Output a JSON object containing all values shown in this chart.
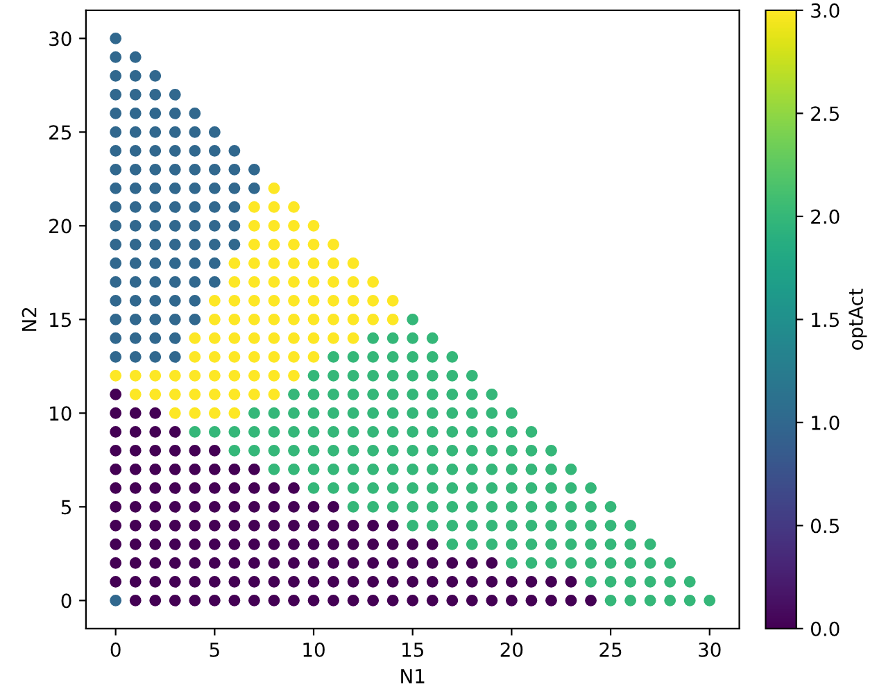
{
  "chart_data": {
    "type": "scatter",
    "xlabel": "N1",
    "ylabel": "N2",
    "clabel": "optAct",
    "marker": "circle",
    "grid": false,
    "xlim": [
      -1.5,
      31.5
    ],
    "ylim": [
      -1.5,
      31.5
    ],
    "xticks": [
      0,
      5,
      10,
      15,
      20,
      25,
      30
    ],
    "yticks": [
      0,
      5,
      10,
      15,
      20,
      25,
      30
    ],
    "clim": [
      0,
      3
    ],
    "cticks": [
      {
        "value": 0,
        "label": "0.0"
      },
      0.5,
      {
        "value": 1,
        "label": "1.0"
      },
      1.5,
      {
        "value": 2,
        "label": "2.0"
      },
      2.5,
      {
        "value": 3,
        "label": "3.0"
      }
    ],
    "series": [
      {
        "x": [
          0,
          1,
          2,
          3,
          4,
          5,
          6,
          7,
          8,
          9,
          10,
          11,
          12,
          13,
          14,
          15,
          16,
          17,
          18,
          19,
          20,
          21,
          22,
          23,
          24,
          25,
          26,
          27,
          28,
          29,
          30
        ],
        "values": [
          0,
          0,
          0,
          0,
          0,
          0,
          0,
          0,
          0,
          0,
          0,
          0,
          0,
          0,
          0,
          0,
          0,
          0,
          0,
          0,
          0,
          0,
          0,
          0,
          0,
          0,
          0,
          0,
          0,
          0,
          0
        ],
        "cvalues": [
          1,
          0,
          0,
          0,
          0,
          0,
          0,
          0,
          0,
          0,
          0,
          0,
          0,
          0,
          0,
          0,
          0,
          0,
          0,
          0,
          0,
          0,
          0,
          0,
          0,
          2,
          2,
          2,
          2,
          2,
          2
        ],
        "colors": [
          "#31688e",
          "#440154",
          "#440154",
          "#440154",
          "#440154",
          "#440154",
          "#440154",
          "#440154",
          "#440154",
          "#440154",
          "#440154",
          "#440154",
          "#440154",
          "#440154",
          "#440154",
          "#440154",
          "#440154",
          "#440154",
          "#440154",
          "#440154",
          "#440154",
          "#440154",
          "#440154",
          "#440154",
          "#440154",
          "#35b779",
          "#35b779",
          "#35b779",
          "#35b779",
          "#35b779",
          "#35b779"
        ]
      },
      {
        "x": [
          0,
          1,
          2,
          3,
          4,
          5,
          6,
          7,
          8,
          9,
          10,
          11,
          12,
          13,
          14,
          15,
          16,
          17,
          18,
          19,
          20,
          21,
          22,
          23,
          24,
          25,
          26,
          27,
          28,
          29
        ],
        "values": [
          1,
          1,
          1,
          1,
          1,
          1,
          1,
          1,
          1,
          1,
          1,
          1,
          1,
          1,
          1,
          1,
          1,
          1,
          1,
          1,
          1,
          1,
          1,
          1,
          1,
          1,
          1,
          1,
          1,
          1
        ],
        "cvalues": [
          0,
          0,
          0,
          0,
          0,
          0,
          0,
          0,
          0,
          0,
          0,
          0,
          0,
          0,
          0,
          0,
          0,
          0,
          0,
          0,
          0,
          0,
          0,
          0,
          2,
          2,
          2,
          2,
          2,
          2
        ],
        "colors": [
          "#440154",
          "#440154",
          "#440154",
          "#440154",
          "#440154",
          "#440154",
          "#440154",
          "#440154",
          "#440154",
          "#440154",
          "#440154",
          "#440154",
          "#440154",
          "#440154",
          "#440154",
          "#440154",
          "#440154",
          "#440154",
          "#440154",
          "#440154",
          "#440154",
          "#440154",
          "#440154",
          "#440154",
          "#35b779",
          "#35b779",
          "#35b779",
          "#35b779",
          "#35b779",
          "#35b779"
        ]
      },
      {
        "x": [
          0,
          1,
          2,
          3,
          4,
          5,
          6,
          7,
          8,
          9,
          10,
          11,
          12,
          13,
          14,
          15,
          16,
          17,
          18,
          19,
          20,
          21,
          22,
          23,
          24,
          25,
          26,
          27,
          28
        ],
        "values": [
          2,
          2,
          2,
          2,
          2,
          2,
          2,
          2,
          2,
          2,
          2,
          2,
          2,
          2,
          2,
          2,
          2,
          2,
          2,
          2,
          2,
          2,
          2,
          2,
          2,
          2,
          2,
          2,
          2
        ],
        "cvalues": [
          0,
          0,
          0,
          0,
          0,
          0,
          0,
          0,
          0,
          0,
          0,
          0,
          0,
          0,
          0,
          0,
          0,
          0,
          0,
          0,
          2,
          2,
          2,
          2,
          2,
          2,
          2,
          2,
          2
        ],
        "colors": [
          "#440154",
          "#440154",
          "#440154",
          "#440154",
          "#440154",
          "#440154",
          "#440154",
          "#440154",
          "#440154",
          "#440154",
          "#440154",
          "#440154",
          "#440154",
          "#440154",
          "#440154",
          "#440154",
          "#440154",
          "#440154",
          "#440154",
          "#440154",
          "#35b779",
          "#35b779",
          "#35b779",
          "#35b779",
          "#35b779",
          "#35b779",
          "#35b779",
          "#35b779",
          "#35b779"
        ]
      },
      {
        "x": [
          0,
          1,
          2,
          3,
          4,
          5,
          6,
          7,
          8,
          9,
          10,
          11,
          12,
          13,
          14,
          15,
          16,
          17,
          18,
          19,
          20,
          21,
          22,
          23,
          24,
          25,
          26,
          27
        ],
        "values": [
          3,
          3,
          3,
          3,
          3,
          3,
          3,
          3,
          3,
          3,
          3,
          3,
          3,
          3,
          3,
          3,
          3,
          3,
          3,
          3,
          3,
          3,
          3,
          3,
          3,
          3,
          3,
          3
        ],
        "cvalues": [
          0,
          0,
          0,
          0,
          0,
          0,
          0,
          0,
          0,
          0,
          0,
          0,
          0,
          0,
          0,
          0,
          0,
          2,
          2,
          2,
          2,
          2,
          2,
          2,
          2,
          2,
          2,
          2
        ],
        "colors": [
          "#440154",
          "#440154",
          "#440154",
          "#440154",
          "#440154",
          "#440154",
          "#440154",
          "#440154",
          "#440154",
          "#440154",
          "#440154",
          "#440154",
          "#440154",
          "#440154",
          "#440154",
          "#440154",
          "#440154",
          "#35b779",
          "#35b779",
          "#35b779",
          "#35b779",
          "#35b779",
          "#35b779",
          "#35b779",
          "#35b779",
          "#35b779",
          "#35b779",
          "#35b779"
        ]
      },
      {
        "x": [
          0,
          1,
          2,
          3,
          4,
          5,
          6,
          7,
          8,
          9,
          10,
          11,
          12,
          13,
          14,
          15,
          16,
          17,
          18,
          19,
          20,
          21,
          22,
          23,
          24,
          25,
          26
        ],
        "values": [
          4,
          4,
          4,
          4,
          4,
          4,
          4,
          4,
          4,
          4,
          4,
          4,
          4,
          4,
          4,
          4,
          4,
          4,
          4,
          4,
          4,
          4,
          4,
          4,
          4,
          4,
          4
        ],
        "cvalues": [
          0,
          0,
          0,
          0,
          0,
          0,
          0,
          0,
          0,
          0,
          0,
          0,
          0,
          0,
          0,
          2,
          2,
          2,
          2,
          2,
          2,
          2,
          2,
          2,
          2,
          2,
          2
        ],
        "colors": [
          "#440154",
          "#440154",
          "#440154",
          "#440154",
          "#440154",
          "#440154",
          "#440154",
          "#440154",
          "#440154",
          "#440154",
          "#440154",
          "#440154",
          "#440154",
          "#440154",
          "#440154",
          "#35b779",
          "#35b779",
          "#35b779",
          "#35b779",
          "#35b779",
          "#35b779",
          "#35b779",
          "#35b779",
          "#35b779",
          "#35b779",
          "#35b779",
          "#35b779"
        ]
      },
      {
        "x": [
          0,
          1,
          2,
          3,
          4,
          5,
          6,
          7,
          8,
          9,
          10,
          11,
          12,
          13,
          14,
          15,
          16,
          17,
          18,
          19,
          20,
          21,
          22,
          23,
          24,
          25
        ],
        "values": [
          5,
          5,
          5,
          5,
          5,
          5,
          5,
          5,
          5,
          5,
          5,
          5,
          5,
          5,
          5,
          5,
          5,
          5,
          5,
          5,
          5,
          5,
          5,
          5,
          5,
          5
        ],
        "cvalues": [
          0,
          0,
          0,
          0,
          0,
          0,
          0,
          0,
          0,
          0,
          0,
          0,
          2,
          2,
          2,
          2,
          2,
          2,
          2,
          2,
          2,
          2,
          2,
          2,
          2,
          2
        ],
        "colors": [
          "#440154",
          "#440154",
          "#440154",
          "#440154",
          "#440154",
          "#440154",
          "#440154",
          "#440154",
          "#440154",
          "#440154",
          "#440154",
          "#440154",
          "#35b779",
          "#35b779",
          "#35b779",
          "#35b779",
          "#35b779",
          "#35b779",
          "#35b779",
          "#35b779",
          "#35b779",
          "#35b779",
          "#35b779",
          "#35b779",
          "#35b779",
          "#35b779"
        ]
      },
      {
        "x": [
          0,
          1,
          2,
          3,
          4,
          5,
          6,
          7,
          8,
          9,
          10,
          11,
          12,
          13,
          14,
          15,
          16,
          17,
          18,
          19,
          20,
          21,
          22,
          23,
          24
        ],
        "values": [
          6,
          6,
          6,
          6,
          6,
          6,
          6,
          6,
          6,
          6,
          6,
          6,
          6,
          6,
          6,
          6,
          6,
          6,
          6,
          6,
          6,
          6,
          6,
          6,
          6
        ],
        "cvalues": [
          0,
          0,
          0,
          0,
          0,
          0,
          0,
          0,
          0,
          0,
          2,
          2,
          2,
          2,
          2,
          2,
          2,
          2,
          2,
          2,
          2,
          2,
          2,
          2,
          2
        ],
        "colors": [
          "#440154",
          "#440154",
          "#440154",
          "#440154",
          "#440154",
          "#440154",
          "#440154",
          "#440154",
          "#440154",
          "#440154",
          "#35b779",
          "#35b779",
          "#35b779",
          "#35b779",
          "#35b779",
          "#35b779",
          "#35b779",
          "#35b779",
          "#35b779",
          "#35b779",
          "#35b779",
          "#35b779",
          "#35b779",
          "#35b779",
          "#35b779"
        ]
      },
      {
        "x": [
          0,
          1,
          2,
          3,
          4,
          5,
          6,
          7,
          8,
          9,
          10,
          11,
          12,
          13,
          14,
          15,
          16,
          17,
          18,
          19,
          20,
          21,
          22,
          23
        ],
        "values": [
          7,
          7,
          7,
          7,
          7,
          7,
          7,
          7,
          7,
          7,
          7,
          7,
          7,
          7,
          7,
          7,
          7,
          7,
          7,
          7,
          7,
          7,
          7,
          7
        ],
        "cvalues": [
          0,
          0,
          0,
          0,
          0,
          0,
          0,
          0,
          2,
          2,
          2,
          2,
          2,
          2,
          2,
          2,
          2,
          2,
          2,
          2,
          2,
          2,
          2,
          2
        ],
        "colors": [
          "#440154",
          "#440154",
          "#440154",
          "#440154",
          "#440154",
          "#440154",
          "#440154",
          "#440154",
          "#35b779",
          "#35b779",
          "#35b779",
          "#35b779",
          "#35b779",
          "#35b779",
          "#35b779",
          "#35b779",
          "#35b779",
          "#35b779",
          "#35b779",
          "#35b779",
          "#35b779",
          "#35b779",
          "#35b779",
          "#35b779"
        ]
      },
      {
        "x": [
          0,
          1,
          2,
          3,
          4,
          5,
          6,
          7,
          8,
          9,
          10,
          11,
          12,
          13,
          14,
          15,
          16,
          17,
          18,
          19,
          20,
          21,
          22
        ],
        "values": [
          8,
          8,
          8,
          8,
          8,
          8,
          8,
          8,
          8,
          8,
          8,
          8,
          8,
          8,
          8,
          8,
          8,
          8,
          8,
          8,
          8,
          8,
          8
        ],
        "cvalues": [
          0,
          0,
          0,
          0,
          0,
          0,
          2,
          2,
          2,
          2,
          2,
          2,
          2,
          2,
          2,
          2,
          2,
          2,
          2,
          2,
          2,
          2,
          2
        ],
        "colors": [
          "#440154",
          "#440154",
          "#440154",
          "#440154",
          "#440154",
          "#440154",
          "#35b779",
          "#35b779",
          "#35b779",
          "#35b779",
          "#35b779",
          "#35b779",
          "#35b779",
          "#35b779",
          "#35b779",
          "#35b779",
          "#35b779",
          "#35b779",
          "#35b779",
          "#35b779",
          "#35b779",
          "#35b779",
          "#35b779"
        ]
      },
      {
        "x": [
          0,
          1,
          2,
          3,
          4,
          5,
          6,
          7,
          8,
          9,
          10,
          11,
          12,
          13,
          14,
          15,
          16,
          17,
          18,
          19,
          20,
          21
        ],
        "values": [
          9,
          9,
          9,
          9,
          9,
          9,
          9,
          9,
          9,
          9,
          9,
          9,
          9,
          9,
          9,
          9,
          9,
          9,
          9,
          9,
          9,
          9
        ],
        "cvalues": [
          0,
          0,
          0,
          0,
          2,
          2,
          2,
          2,
          2,
          2,
          2,
          2,
          2,
          2,
          2,
          2,
          2,
          2,
          2,
          2,
          2,
          2
        ],
        "colors": [
          "#440154",
          "#440154",
          "#440154",
          "#440154",
          "#35b779",
          "#35b779",
          "#35b779",
          "#35b779",
          "#35b779",
          "#35b779",
          "#35b779",
          "#35b779",
          "#35b779",
          "#35b779",
          "#35b779",
          "#35b779",
          "#35b779",
          "#35b779",
          "#35b779",
          "#35b779",
          "#35b779",
          "#35b779"
        ]
      },
      {
        "x": [
          0,
          1,
          2,
          3,
          4,
          5,
          6,
          7,
          8,
          9,
          10,
          11,
          12,
          13,
          14,
          15,
          16,
          17,
          18,
          19,
          20
        ],
        "values": [
          10,
          10,
          10,
          10,
          10,
          10,
          10,
          10,
          10,
          10,
          10,
          10,
          10,
          10,
          10,
          10,
          10,
          10,
          10,
          10,
          10
        ],
        "cvalues": [
          0,
          0,
          0,
          3,
          3,
          3,
          3,
          2,
          2,
          2,
          2,
          2,
          2,
          2,
          2,
          2,
          2,
          2,
          2,
          2,
          2
        ],
        "colors": [
          "#440154",
          "#440154",
          "#440154",
          "#fde725",
          "#fde725",
          "#fde725",
          "#fde725",
          "#35b779",
          "#35b779",
          "#35b779",
          "#35b779",
          "#35b779",
          "#35b779",
          "#35b779",
          "#35b779",
          "#35b779",
          "#35b779",
          "#35b779",
          "#35b779",
          "#35b779",
          "#35b779"
        ]
      },
      {
        "x": [
          0,
          1,
          2,
          3,
          4,
          5,
          6,
          7,
          8,
          9,
          10,
          11,
          12,
          13,
          14,
          15,
          16,
          17,
          18,
          19
        ],
        "values": [
          11,
          11,
          11,
          11,
          11,
          11,
          11,
          11,
          11,
          11,
          11,
          11,
          11,
          11,
          11,
          11,
          11,
          11,
          11,
          11
        ],
        "cvalues": [
          0,
          3,
          3,
          3,
          3,
          3,
          3,
          3,
          3,
          2,
          2,
          2,
          2,
          2,
          2,
          2,
          2,
          2,
          2,
          2
        ],
        "colors": [
          "#440154",
          "#fde725",
          "#fde725",
          "#fde725",
          "#fde725",
          "#fde725",
          "#fde725",
          "#fde725",
          "#fde725",
          "#35b779",
          "#35b779",
          "#35b779",
          "#35b779",
          "#35b779",
          "#35b779",
          "#35b779",
          "#35b779",
          "#35b779",
          "#35b779",
          "#35b779"
        ]
      },
      {
        "x": [
          0,
          1,
          2,
          3,
          4,
          5,
          6,
          7,
          8,
          9,
          10,
          11,
          12,
          13,
          14,
          15,
          16,
          17,
          18
        ],
        "values": [
          12,
          12,
          12,
          12,
          12,
          12,
          12,
          12,
          12,
          12,
          12,
          12,
          12,
          12,
          12,
          12,
          12,
          12,
          12
        ],
        "cvalues": [
          3,
          3,
          3,
          3,
          3,
          3,
          3,
          3,
          3,
          3,
          2,
          2,
          2,
          2,
          2,
          2,
          2,
          2,
          2
        ],
        "colors": [
          "#fde725",
          "#fde725",
          "#fde725",
          "#fde725",
          "#fde725",
          "#fde725",
          "#fde725",
          "#fde725",
          "#fde725",
          "#fde725",
          "#35b779",
          "#35b779",
          "#35b779",
          "#35b779",
          "#35b779",
          "#35b779",
          "#35b779",
          "#35b779",
          "#35b779"
        ]
      },
      {
        "x": [
          0,
          1,
          2,
          3,
          4,
          5,
          6,
          7,
          8,
          9,
          10,
          11,
          12,
          13,
          14,
          15,
          16,
          17
        ],
        "values": [
          13,
          13,
          13,
          13,
          13,
          13,
          13,
          13,
          13,
          13,
          13,
          13,
          13,
          13,
          13,
          13,
          13,
          13
        ],
        "cvalues": [
          1,
          1,
          1,
          1,
          3,
          3,
          3,
          3,
          3,
          3,
          3,
          2,
          2,
          2,
          2,
          2,
          2,
          2
        ],
        "colors": [
          "#31688e",
          "#31688e",
          "#31688e",
          "#31688e",
          "#fde725",
          "#fde725",
          "#fde725",
          "#fde725",
          "#fde725",
          "#fde725",
          "#fde725",
          "#35b779",
          "#35b779",
          "#35b779",
          "#35b779",
          "#35b779",
          "#35b779",
          "#35b779"
        ]
      },
      {
        "x": [
          0,
          1,
          2,
          3,
          4,
          5,
          6,
          7,
          8,
          9,
          10,
          11,
          12,
          13,
          14,
          15,
          16
        ],
        "values": [
          14,
          14,
          14,
          14,
          14,
          14,
          14,
          14,
          14,
          14,
          14,
          14,
          14,
          14,
          14,
          14,
          14
        ],
        "cvalues": [
          1,
          1,
          1,
          1,
          3,
          3,
          3,
          3,
          3,
          3,
          3,
          3,
          3,
          2,
          2,
          2,
          2
        ],
        "colors": [
          "#31688e",
          "#31688e",
          "#31688e",
          "#31688e",
          "#fde725",
          "#fde725",
          "#fde725",
          "#fde725",
          "#fde725",
          "#fde725",
          "#fde725",
          "#fde725",
          "#fde725",
          "#35b779",
          "#35b779",
          "#35b779",
          "#35b779"
        ]
      },
      {
        "x": [
          0,
          1,
          2,
          3,
          4,
          5,
          6,
          7,
          8,
          9,
          10,
          11,
          12,
          13,
          14,
          15
        ],
        "values": [
          15,
          15,
          15,
          15,
          15,
          15,
          15,
          15,
          15,
          15,
          15,
          15,
          15,
          15,
          15,
          15
        ],
        "cvalues": [
          1,
          1,
          1,
          1,
          1,
          3,
          3,
          3,
          3,
          3,
          3,
          3,
          3,
          3,
          3,
          2
        ],
        "colors": [
          "#31688e",
          "#31688e",
          "#31688e",
          "#31688e",
          "#31688e",
          "#fde725",
          "#fde725",
          "#fde725",
          "#fde725",
          "#fde725",
          "#fde725",
          "#fde725",
          "#fde725",
          "#fde725",
          "#fde725",
          "#35b779"
        ]
      },
      {
        "x": [
          0,
          1,
          2,
          3,
          4,
          5,
          6,
          7,
          8,
          9,
          10,
          11,
          12,
          13,
          14
        ],
        "values": [
          16,
          16,
          16,
          16,
          16,
          16,
          16,
          16,
          16,
          16,
          16,
          16,
          16,
          16,
          16
        ],
        "cvalues": [
          1,
          1,
          1,
          1,
          1,
          3,
          3,
          3,
          3,
          3,
          3,
          3,
          3,
          3,
          3
        ],
        "colors": [
          "#31688e",
          "#31688e",
          "#31688e",
          "#31688e",
          "#31688e",
          "#fde725",
          "#fde725",
          "#fde725",
          "#fde725",
          "#fde725",
          "#fde725",
          "#fde725",
          "#fde725",
          "#fde725",
          "#fde725"
        ]
      },
      {
        "x": [
          0,
          1,
          2,
          3,
          4,
          5,
          6,
          7,
          8,
          9,
          10,
          11,
          12,
          13
        ],
        "values": [
          17,
          17,
          17,
          17,
          17,
          17,
          17,
          17,
          17,
          17,
          17,
          17,
          17,
          17
        ],
        "cvalues": [
          1,
          1,
          1,
          1,
          1,
          1,
          3,
          3,
          3,
          3,
          3,
          3,
          3,
          3
        ],
        "colors": [
          "#31688e",
          "#31688e",
          "#31688e",
          "#31688e",
          "#31688e",
          "#31688e",
          "#fde725",
          "#fde725",
          "#fde725",
          "#fde725",
          "#fde725",
          "#fde725",
          "#fde725",
          "#fde725"
        ]
      },
      {
        "x": [
          0,
          1,
          2,
          3,
          4,
          5,
          6,
          7,
          8,
          9,
          10,
          11,
          12
        ],
        "values": [
          18,
          18,
          18,
          18,
          18,
          18,
          18,
          18,
          18,
          18,
          18,
          18,
          18
        ],
        "cvalues": [
          1,
          1,
          1,
          1,
          1,
          1,
          3,
          3,
          3,
          3,
          3,
          3,
          3
        ],
        "colors": [
          "#31688e",
          "#31688e",
          "#31688e",
          "#31688e",
          "#31688e",
          "#31688e",
          "#fde725",
          "#fde725",
          "#fde725",
          "#fde725",
          "#fde725",
          "#fde725",
          "#fde725"
        ]
      },
      {
        "x": [
          0,
          1,
          2,
          3,
          4,
          5,
          6,
          7,
          8,
          9,
          10,
          11
        ],
        "values": [
          19,
          19,
          19,
          19,
          19,
          19,
          19,
          19,
          19,
          19,
          19,
          19
        ],
        "cvalues": [
          1,
          1,
          1,
          1,
          1,
          1,
          1,
          3,
          3,
          3,
          3,
          3
        ],
        "colors": [
          "#31688e",
          "#31688e",
          "#31688e",
          "#31688e",
          "#31688e",
          "#31688e",
          "#31688e",
          "#fde725",
          "#fde725",
          "#fde725",
          "#fde725",
          "#fde725"
        ]
      },
      {
        "x": [
          0,
          1,
          2,
          3,
          4,
          5,
          6,
          7,
          8,
          9,
          10
        ],
        "values": [
          20,
          20,
          20,
          20,
          20,
          20,
          20,
          20,
          20,
          20,
          20
        ],
        "cvalues": [
          1,
          1,
          1,
          1,
          1,
          1,
          1,
          3,
          3,
          3,
          3
        ],
        "colors": [
          "#31688e",
          "#31688e",
          "#31688e",
          "#31688e",
          "#31688e",
          "#31688e",
          "#31688e",
          "#fde725",
          "#fde725",
          "#fde725",
          "#fde725"
        ]
      },
      {
        "x": [
          0,
          1,
          2,
          3,
          4,
          5,
          6,
          7,
          8,
          9
        ],
        "values": [
          21,
          21,
          21,
          21,
          21,
          21,
          21,
          21,
          21,
          21
        ],
        "cvalues": [
          1,
          1,
          1,
          1,
          1,
          1,
          1,
          3,
          3,
          3
        ],
        "colors": [
          "#31688e",
          "#31688e",
          "#31688e",
          "#31688e",
          "#31688e",
          "#31688e",
          "#31688e",
          "#fde725",
          "#fde725",
          "#fde725"
        ]
      },
      {
        "x": [
          0,
          1,
          2,
          3,
          4,
          5,
          6,
          7,
          8
        ],
        "values": [
          22,
          22,
          22,
          22,
          22,
          22,
          22,
          22,
          22
        ],
        "cvalues": [
          1,
          1,
          1,
          1,
          1,
          1,
          1,
          1,
          3
        ],
        "colors": [
          "#31688e",
          "#31688e",
          "#31688e",
          "#31688e",
          "#31688e",
          "#31688e",
          "#31688e",
          "#31688e",
          "#fde725"
        ]
      },
      {
        "x": [
          0,
          1,
          2,
          3,
          4,
          5,
          6,
          7
        ],
        "values": [
          23,
          23,
          23,
          23,
          23,
          23,
          23,
          23
        ],
        "cvalues": [
          1,
          1,
          1,
          1,
          1,
          1,
          1,
          1
        ],
        "color": "#31688e"
      },
      {
        "x": [
          0,
          1,
          2,
          3,
          4,
          5,
          6
        ],
        "values": [
          24,
          24,
          24,
          24,
          24,
          24,
          24
        ],
        "cvalues": [
          1,
          1,
          1,
          1,
          1,
          1,
          1
        ],
        "color": "#31688e"
      },
      {
        "x": [
          0,
          1,
          2,
          3,
          4,
          5
        ],
        "values": [
          25,
          25,
          25,
          25,
          25,
          25
        ],
        "cvalues": [
          1,
          1,
          1,
          1,
          1,
          1
        ],
        "color": "#31688e"
      },
      {
        "x": [
          0,
          1,
          2,
          3,
          4
        ],
        "values": [
          26,
          26,
          26,
          26,
          26
        ],
        "cvalues": [
          1,
          1,
          1,
          1,
          1
        ],
        "color": "#31688e"
      },
      {
        "x": [
          0,
          1,
          2,
          3
        ],
        "values": [
          27,
          27,
          27,
          27
        ],
        "cvalues": [
          1,
          1,
          1,
          1
        ],
        "color": "#31688e"
      },
      {
        "x": [
          0,
          1,
          2
        ],
        "values": [
          28,
          28,
          28
        ],
        "cvalues": [
          1,
          1,
          1
        ],
        "color": "#31688e"
      },
      {
        "x": [
          0,
          1
        ],
        "values": [
          29,
          29
        ],
        "cvalues": [
          1,
          1
        ],
        "color": "#31688e"
      },
      {
        "x": [
          0
        ],
        "values": [
          30
        ],
        "cvalues": [
          1
        ],
        "color": "#31688e"
      }
    ]
  }
}
